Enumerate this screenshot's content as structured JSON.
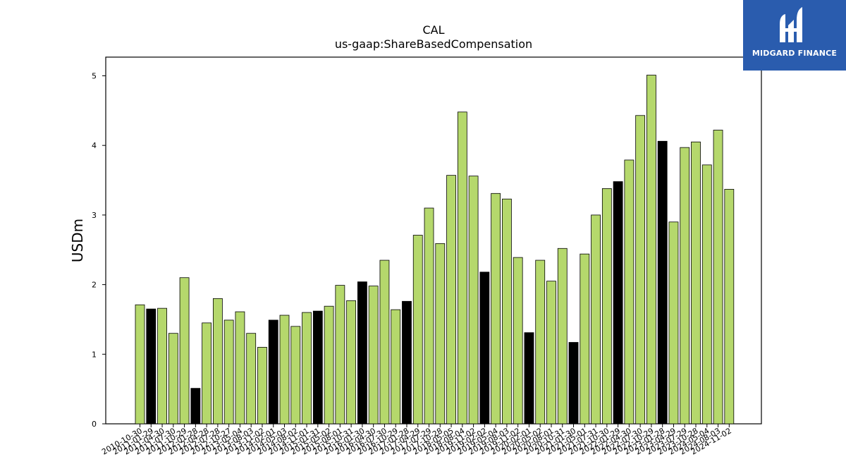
{
  "chart_data": {
    "type": "bar",
    "title": "CAL",
    "subtitle": "us-gaap:ShareBasedCompensation",
    "xlabel": "",
    "ylabel": "USDm",
    "ylim": [
      0,
      5.25
    ],
    "yticks": [
      0,
      1,
      2,
      3,
      4,
      5
    ],
    "grid": false,
    "colors": {
      "default": "#b5d86c",
      "highlight": "#000000",
      "edge": "#000000"
    },
    "categories": [
      "2010-10-30",
      "2011-01-29",
      "2011-04-30",
      "2011-07-30",
      "2011-10-29",
      "2012-01-28",
      "2012-04-28",
      "2012-07-28",
      "2012-10-27",
      "2013-05-04",
      "2013-08-03",
      "2013-11-02",
      "2014-02-01",
      "2014-05-03",
      "2014-08-02",
      "2014-11-01",
      "2015-01-31",
      "2015-05-02",
      "2015-08-01",
      "2015-10-31",
      "2016-01-30",
      "2016-04-30",
      "2016-07-30",
      "2016-10-29",
      "2017-01-28",
      "2017-04-29",
      "2017-07-29",
      "2017-10-28",
      "2018-05-05",
      "2018-08-04",
      "2019-11-02",
      "2019-02-02",
      "2019-05-04",
      "2019-08-03",
      "2019-11-02",
      "2020-02-01",
      "2020-05-02",
      "2020-08-01",
      "2020-10-31",
      "2021-01-30",
      "2021-05-01",
      "2021-07-31",
      "2021-10-30",
      "2022-01-29",
      "2022-04-30",
      "2022-07-30",
      "2022-10-29",
      "2023-01-28",
      "2023-04-29",
      "2023-07-29",
      "2023-10-28",
      "2024-05-04",
      "2024-08-03",
      "2024-11-02"
    ],
    "values": [
      1.71,
      1.65,
      1.66,
      1.3,
      2.1,
      0.51,
      1.45,
      1.8,
      1.49,
      1.61,
      1.3,
      1.1,
      1.49,
      1.56,
      1.4,
      1.6,
      1.62,
      1.69,
      1.99,
      1.77,
      2.04,
      1.98,
      2.35,
      1.64,
      1.76,
      2.71,
      3.1,
      2.59,
      3.57,
      4.48,
      3.56,
      2.18,
      3.31,
      3.23,
      2.39,
      1.31,
      2.35,
      2.05,
      2.52,
      1.17,
      2.44,
      3.0,
      3.38,
      3.48,
      3.79,
      4.43,
      5.01,
      4.06,
      2.9,
      3.97,
      4.05,
      3.72,
      4.22,
      3.37
    ],
    "highlight": [
      false,
      true,
      false,
      false,
      false,
      true,
      false,
      false,
      false,
      false,
      false,
      false,
      true,
      false,
      false,
      false,
      true,
      false,
      false,
      false,
      true,
      false,
      false,
      false,
      true,
      false,
      false,
      false,
      false,
      false,
      false,
      true,
      false,
      false,
      false,
      true,
      false,
      false,
      false,
      true,
      false,
      false,
      false,
      true,
      false,
      false,
      false,
      true,
      false,
      false,
      false,
      false,
      false,
      false
    ]
  },
  "logo": {
    "text": "MIDGARD FINANCE",
    "color": "#2a5cae"
  }
}
